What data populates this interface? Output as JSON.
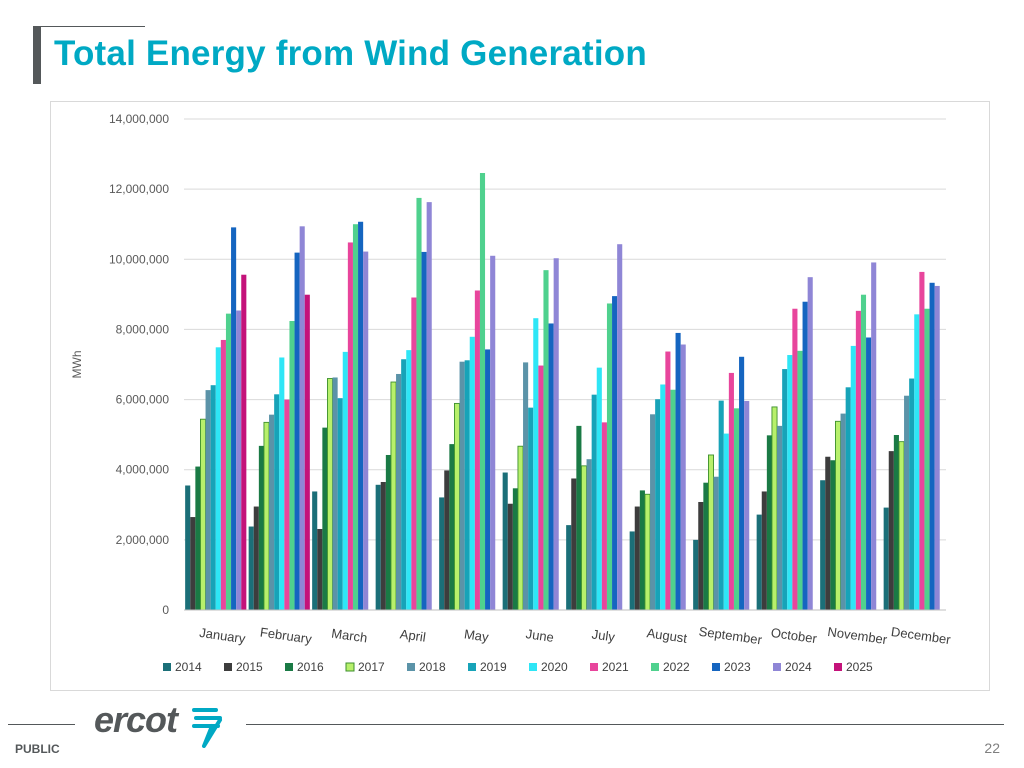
{
  "slide": {
    "title": "Total Energy from Wind Generation",
    "footer_label": "PUBLIC",
    "page_number": "22",
    "logo_text": "ercot"
  },
  "colors": {
    "title": "#00a9c4",
    "footer": "#54585a",
    "grid": "#d9d9d9",
    "axis_text": "#595959"
  },
  "chart_data": {
    "type": "bar",
    "title": "",
    "xlabel": "",
    "ylabel": "MWh",
    "ylim": [
      0,
      14000000
    ],
    "y_ticks": [
      0,
      2000000,
      4000000,
      6000000,
      8000000,
      10000000,
      12000000,
      14000000
    ],
    "y_tick_labels": [
      "0",
      "2,000,000",
      "4,000,000",
      "6,000,000",
      "8,000,000",
      "10,000,000",
      "12,000,000",
      "14,000,000"
    ],
    "categories": [
      "January",
      "February",
      "March",
      "April",
      "May",
      "June",
      "July",
      "August",
      "September",
      "October",
      "November",
      "December"
    ],
    "legend_position": "bottom",
    "series": [
      {
        "name": "2014",
        "color": "#1b6f78",
        "values": [
          3550000,
          2380000,
          3380000,
          3570000,
          3210000,
          3920000,
          2420000,
          2240000,
          2000000,
          2720000,
          3700000,
          2920000
        ]
      },
      {
        "name": "2015",
        "color": "#3d3d3d",
        "values": [
          2650000,
          2950000,
          2310000,
          3650000,
          3980000,
          3030000,
          3750000,
          2950000,
          3080000,
          3380000,
          4370000,
          4530000
        ]
      },
      {
        "name": "2016",
        "color": "#1a7a45",
        "values": [
          4090000,
          4680000,
          5200000,
          4420000,
          4730000,
          3470000,
          5250000,
          3410000,
          3630000,
          4980000,
          4270000,
          4990000
        ]
      },
      {
        "name": "2017",
        "color": "#b7f06b",
        "edge": "#3c8f2e",
        "values": [
          5440000,
          5350000,
          6600000,
          6500000,
          5890000,
          4670000,
          4110000,
          3300000,
          4420000,
          5790000,
          5380000,
          4800000
        ]
      },
      {
        "name": "2018",
        "color": "#5b93a8",
        "values": [
          6270000,
          5570000,
          6630000,
          6730000,
          7080000,
          7060000,
          4300000,
          5580000,
          3800000,
          5250000,
          5600000,
          6110000
        ]
      },
      {
        "name": "2019",
        "color": "#17a3b8",
        "values": [
          6410000,
          6150000,
          6040000,
          7150000,
          7120000,
          5770000,
          6140000,
          6010000,
          5970000,
          6870000,
          6350000,
          6600000
        ]
      },
      {
        "name": "2020",
        "color": "#2ee6f6",
        "values": [
          7490000,
          7200000,
          7360000,
          7410000,
          7790000,
          8320000,
          6910000,
          6430000,
          5030000,
          7270000,
          7530000,
          8430000
        ]
      },
      {
        "name": "2021",
        "color": "#e8459c",
        "values": [
          7700000,
          6000000,
          10480000,
          8910000,
          9110000,
          6970000,
          5350000,
          7370000,
          6760000,
          8590000,
          8530000,
          9640000
        ]
      },
      {
        "name": "2022",
        "color": "#4fd18e",
        "values": [
          8450000,
          8240000,
          11000000,
          11750000,
          12460000,
          9690000,
          8740000,
          6280000,
          5750000,
          7390000,
          8990000,
          8590000
        ]
      },
      {
        "name": "2023",
        "color": "#1565c0",
        "values": [
          10910000,
          10190000,
          11070000,
          10210000,
          7430000,
          8170000,
          8950000,
          7900000,
          7220000,
          8790000,
          7770000,
          9330000
        ]
      },
      {
        "name": "2024",
        "color": "#8f86d6",
        "values": [
          8540000,
          10940000,
          10220000,
          11630000,
          10100000,
          10030000,
          10430000,
          7570000,
          5960000,
          9490000,
          9910000,
          9240000
        ]
      },
      {
        "name": "2025",
        "color": "#c4127a",
        "values": [
          9560000,
          8990000,
          null,
          null,
          null,
          null,
          null,
          null,
          null,
          null,
          null,
          null
        ]
      }
    ]
  }
}
